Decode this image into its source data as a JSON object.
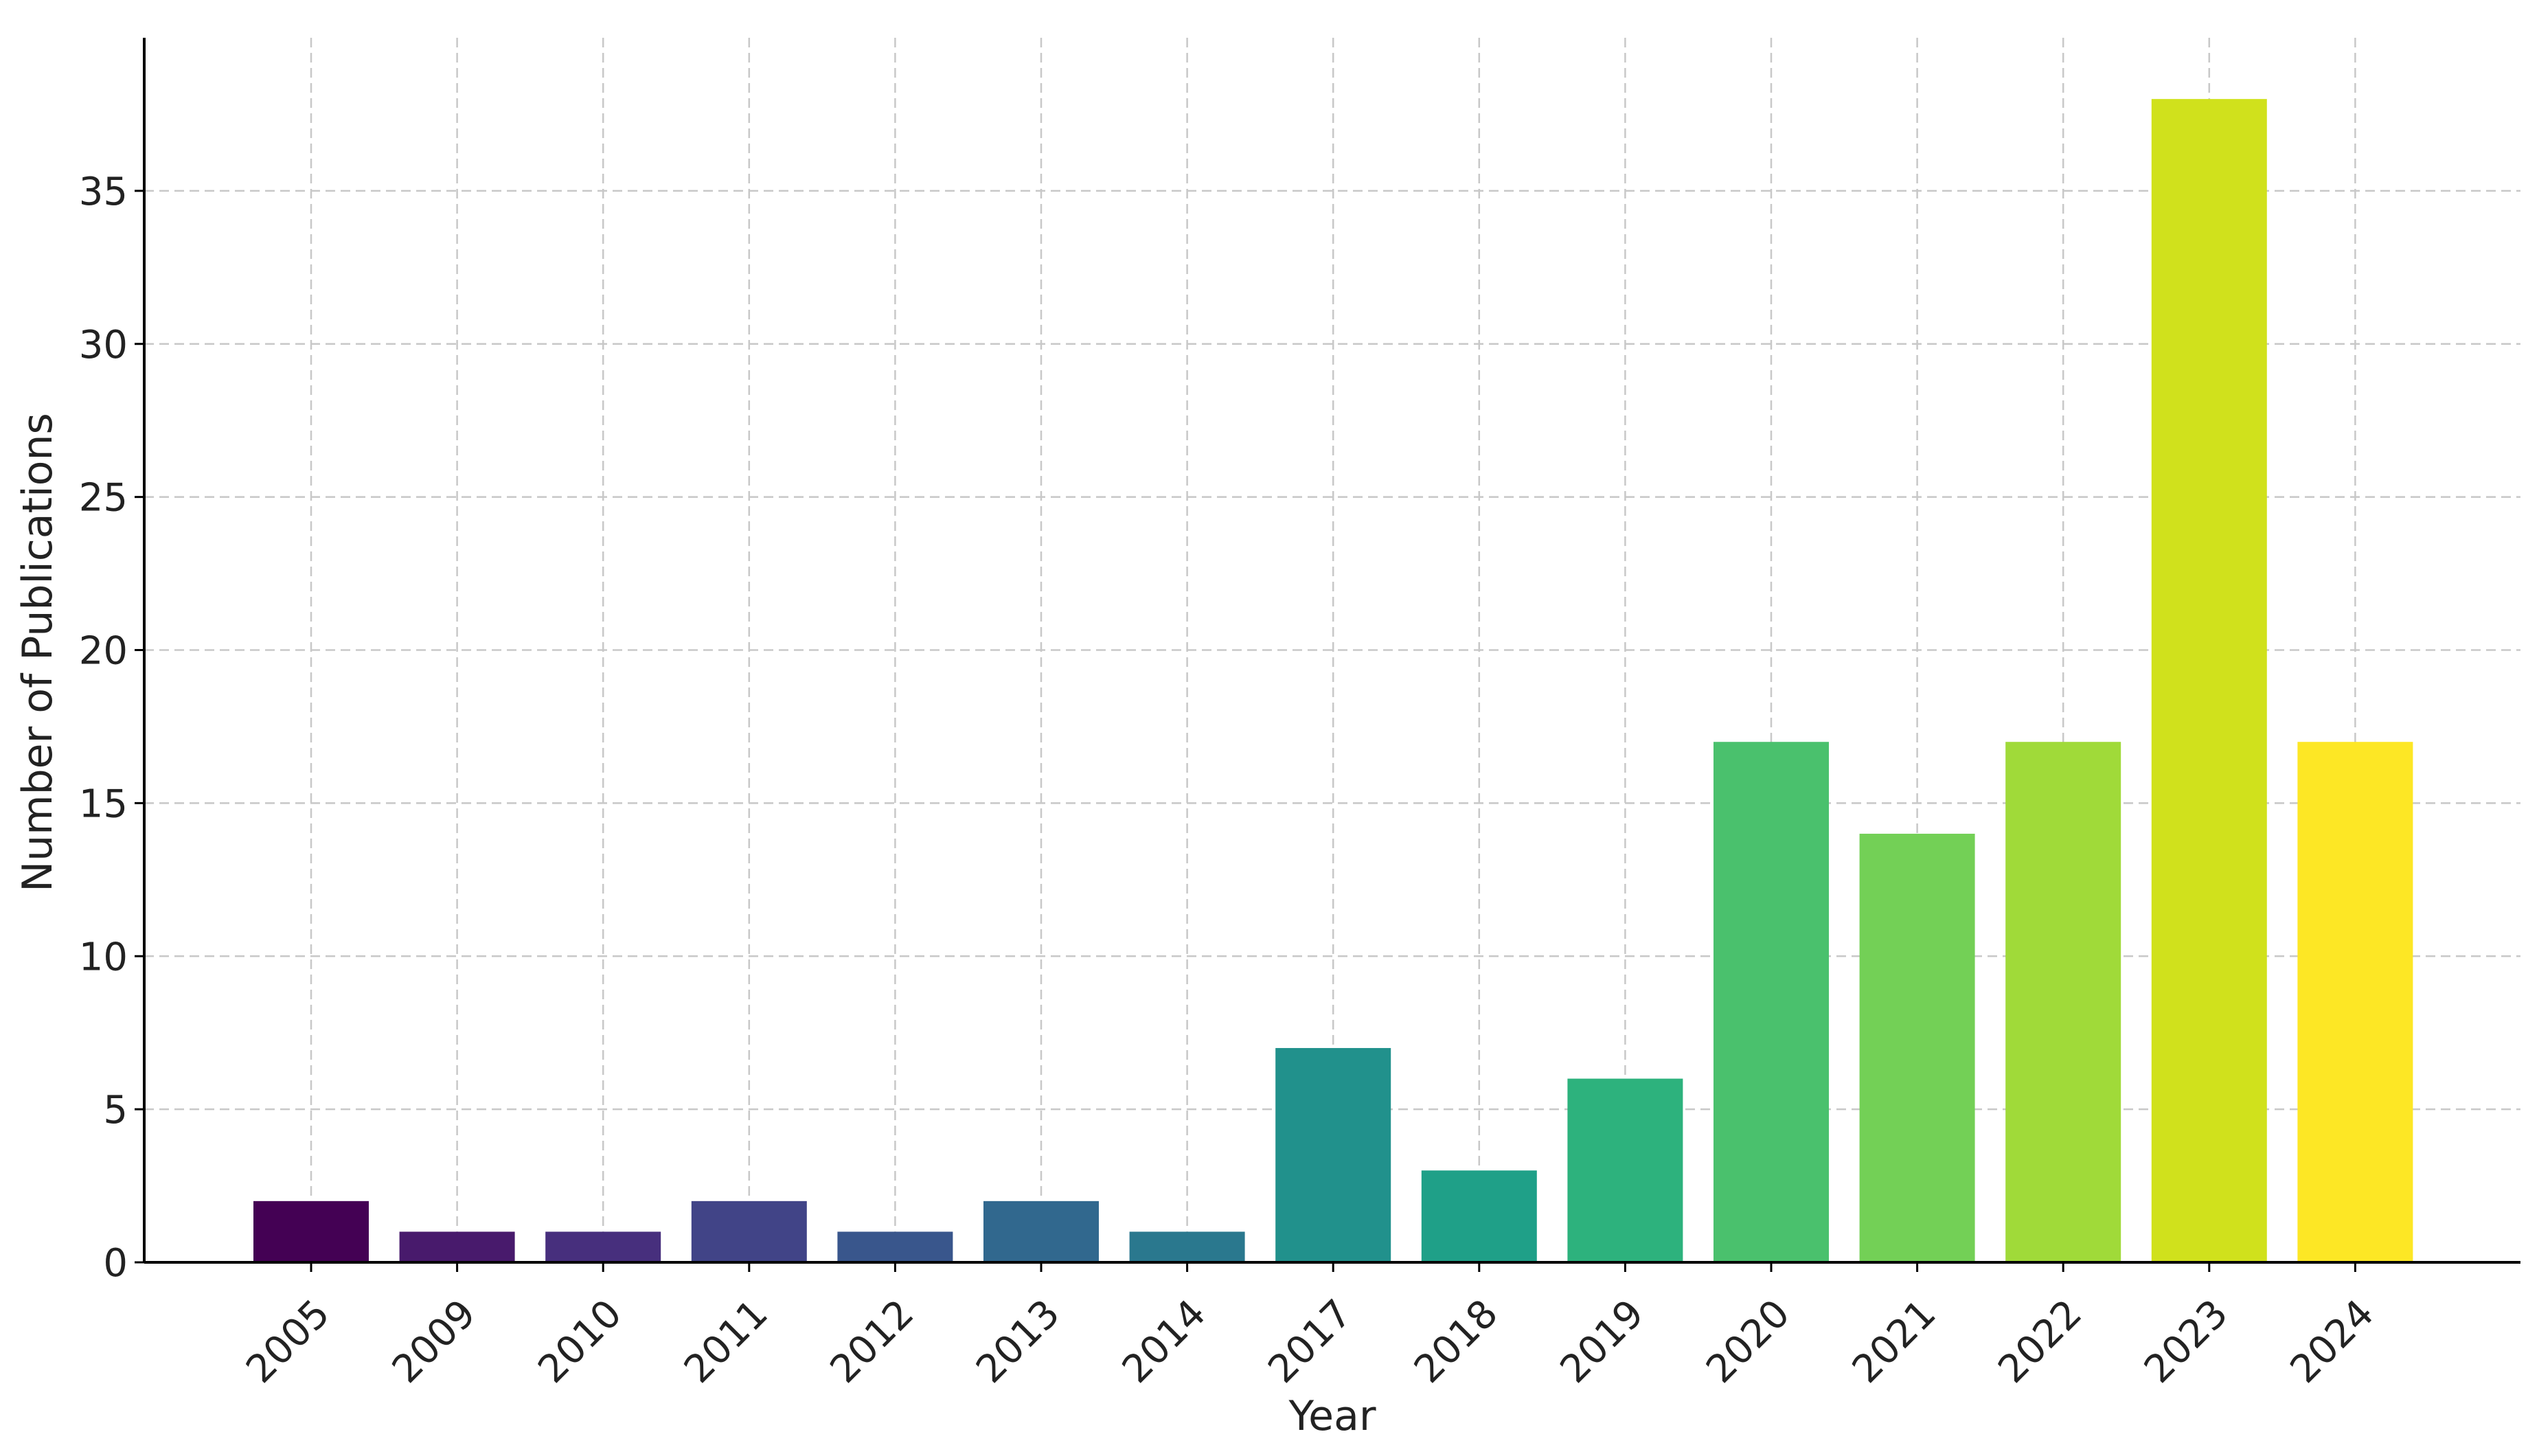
{
  "chart_data": {
    "type": "bar",
    "title": "",
    "xlabel": "Year",
    "ylabel": "Number of Publications",
    "categories": [
      "2005",
      "2009",
      "2010",
      "2011",
      "2012",
      "2013",
      "2014",
      "2017",
      "2018",
      "2019",
      "2020",
      "2021",
      "2022",
      "2023",
      "2024"
    ],
    "values": [
      2,
      1,
      1,
      2,
      1,
      2,
      1,
      7,
      3,
      6,
      17,
      14,
      17,
      38,
      17
    ],
    "colors": [
      "#440154",
      "#481a6c",
      "#472f7d",
      "#414487",
      "#39568c",
      "#31688e",
      "#2a788e",
      "#21918c",
      "#1fa088",
      "#2db27d",
      "#4ac16d",
      "#73d056",
      "#a0da39",
      "#d0e11c",
      "#fde725"
    ],
    "ylim": [
      0,
      40
    ],
    "yticks": [
      "0",
      "5",
      "10",
      "15",
      "20",
      "25",
      "30",
      "35"
    ],
    "grid": true,
    "legend": "none"
  }
}
